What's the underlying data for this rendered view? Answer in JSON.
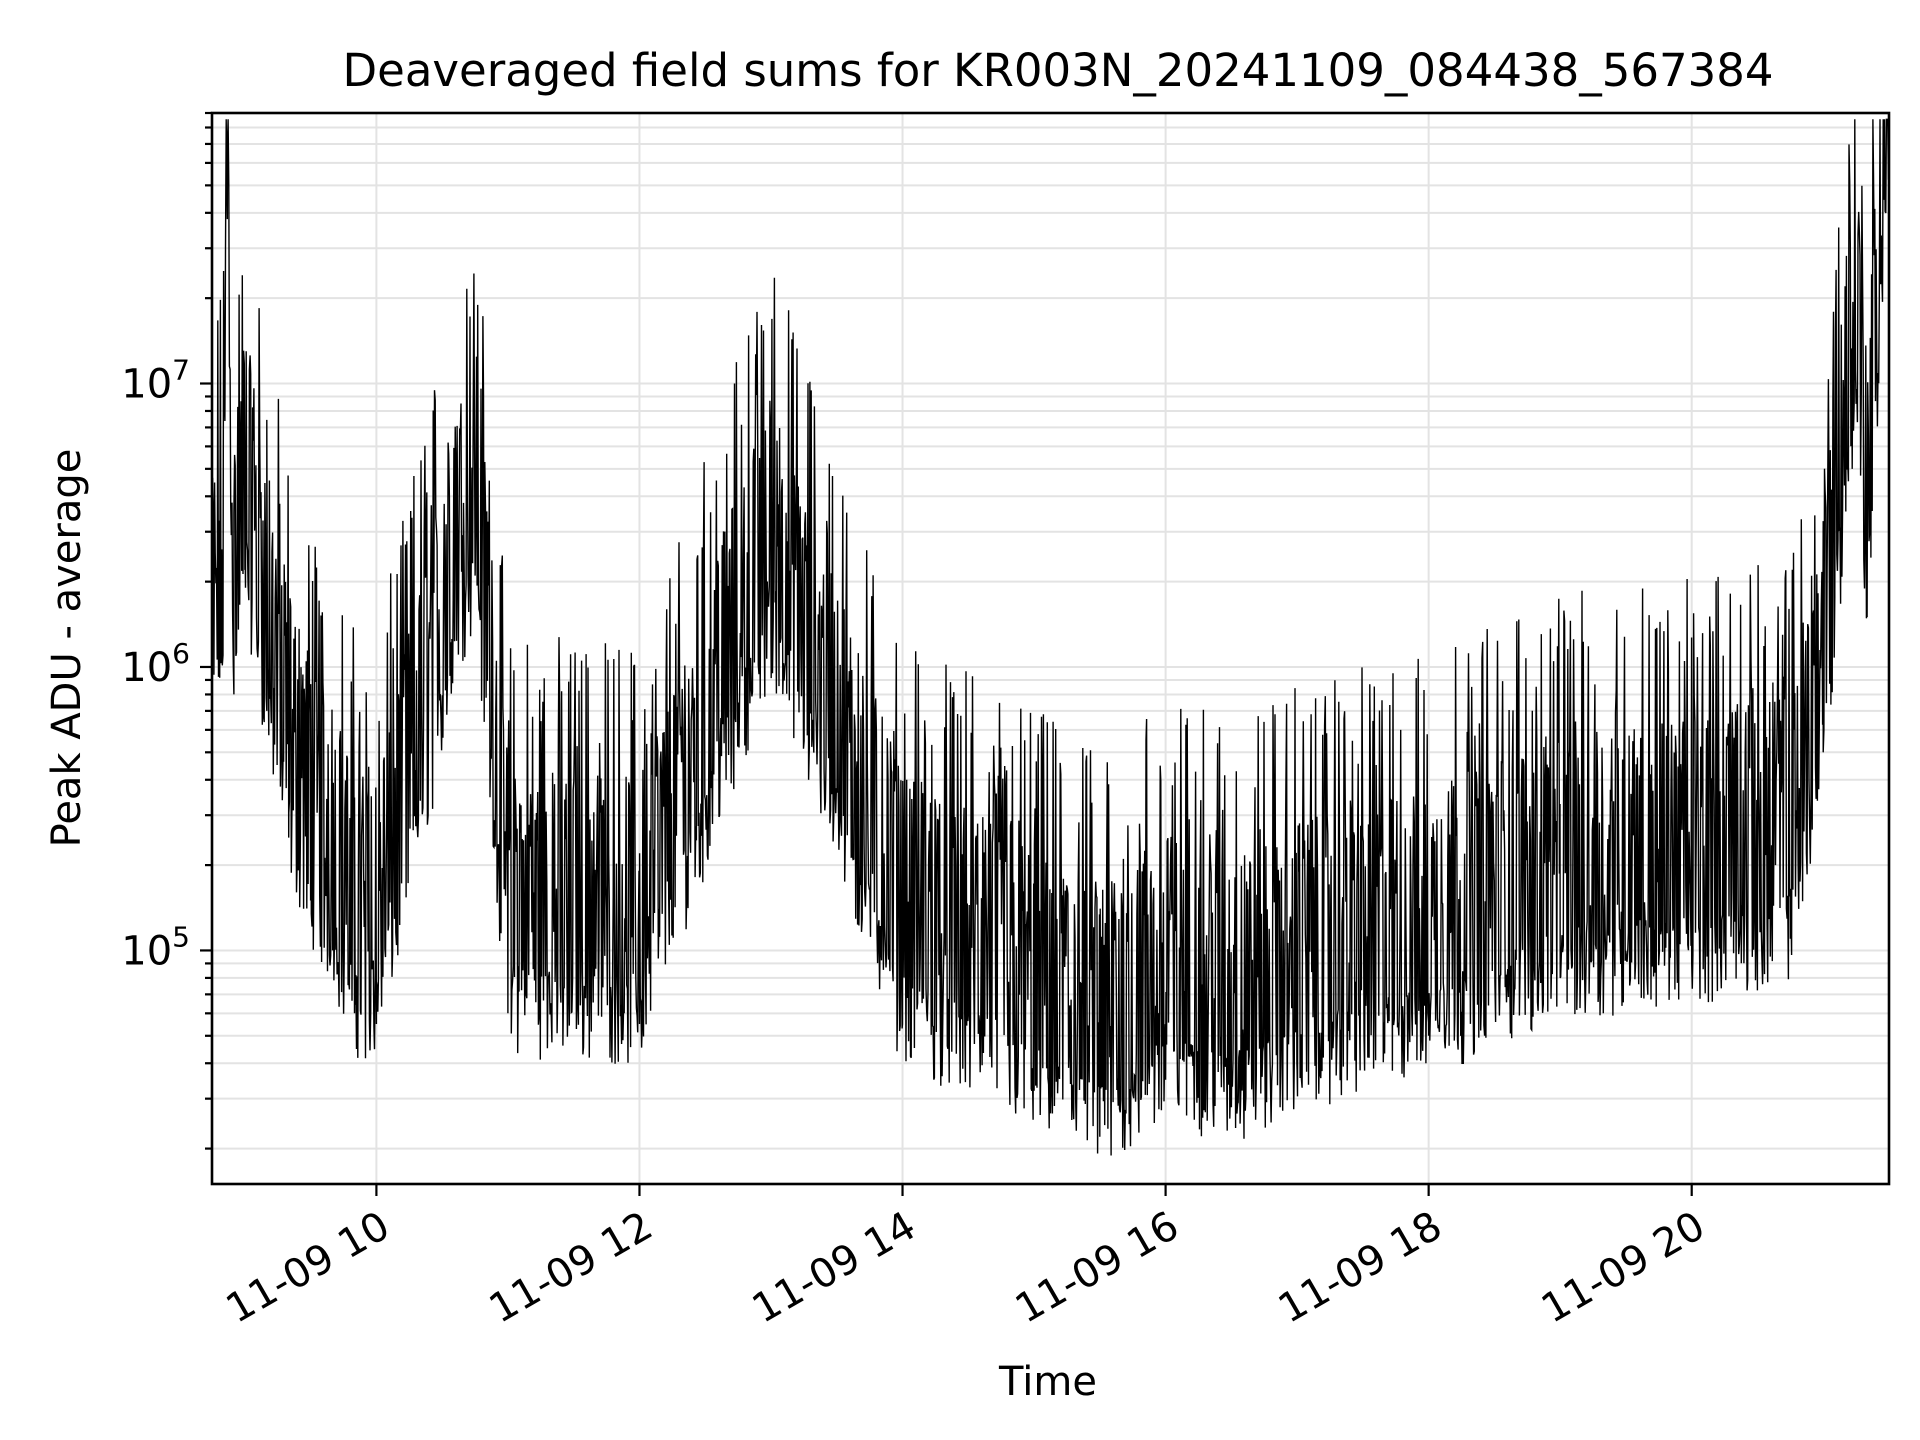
{
  "chart_data": {
    "type": "line",
    "title": "Deaveraged field sums for KR003N_20241109_084438_567384",
    "xlabel": "Time",
    "ylabel": "Peak ADU - average",
    "y_scale": "log",
    "ylim": [
      15000,
      90000000
    ],
    "xlim": [
      "11-09 08:45",
      "11-09 21:30"
    ],
    "grid": true,
    "x_ticks": [
      "11-09 10",
      "11-09 12",
      "11-09 14",
      "11-09 16",
      "11-09 18",
      "11-09 20"
    ],
    "y_ticks": [
      {
        "base": "10",
        "exp": "5",
        "value": 100000
      },
      {
        "base": "10",
        "exp": "6",
        "value": 1000000
      },
      {
        "base": "10",
        "exp": "7",
        "value": 10000000
      }
    ],
    "series": [
      {
        "color": "#000000",
        "points": [
          {
            "x": "11-09 08:45",
            "y": 600000
          },
          {
            "x": "11-09 08:50",
            "y": 1100000
          },
          {
            "x": "11-09 08:52",
            "y": 38000000
          },
          {
            "x": "11-09 08:55",
            "y": 800000
          },
          {
            "x": "11-09 09:00",
            "y": 2200000
          },
          {
            "x": "11-09 09:10",
            "y": 700000
          },
          {
            "x": "11-09 09:20",
            "y": 250000
          },
          {
            "x": "11-09 09:30",
            "y": 150000
          },
          {
            "x": "11-09 09:40",
            "y": 100000
          },
          {
            "x": "11-09 09:50",
            "y": 60000
          },
          {
            "x": "11-09 10:00",
            "y": 55000
          },
          {
            "x": "11-09 10:45",
            "y": 2100000
          },
          {
            "x": "11-09 11:00",
            "y": 60000
          },
          {
            "x": "11-09 12:00",
            "y": 55000
          },
          {
            "x": "11-09 13:00",
            "y": 1250000
          },
          {
            "x": "11-09 14:00",
            "y": 55000
          },
          {
            "x": "11-09 15:00",
            "y": 32000
          },
          {
            "x": "11-09 15:30",
            "y": 22000
          },
          {
            "x": "11-09 16:00",
            "y": 35000
          },
          {
            "x": "11-09 16:30",
            "y": 28000
          },
          {
            "x": "11-09 17:00",
            "y": 38000
          },
          {
            "x": "11-09 18:00",
            "y": 50000
          },
          {
            "x": "11-09 19:00",
            "y": 80000
          },
          {
            "x": "11-09 20:00",
            "y": 90000
          },
          {
            "x": "11-09 20:45",
            "y": 110000
          },
          {
            "x": "11-09 21:00",
            "y": 500000
          },
          {
            "x": "11-09 21:15",
            "y": 9500000
          },
          {
            "x": "11-09 21:20",
            "y": 1500000
          },
          {
            "x": "11-09 21:30",
            "y": 65000000
          }
        ]
      }
    ]
  }
}
